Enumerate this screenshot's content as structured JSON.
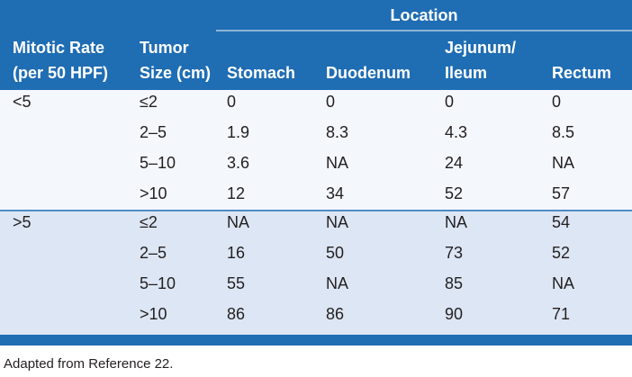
{
  "table": {
    "spanner": "Location",
    "columns": [
      [
        "Mitotic Rate",
        "(per 50 HPF)"
      ],
      [
        "Tumor",
        "Size (cm)"
      ],
      [
        "Stomach"
      ],
      [
        "Duodenum"
      ],
      [
        "Jejunum/",
        "Ileum"
      ],
      [
        "Rectum"
      ]
    ],
    "groups": [
      {
        "rate": "<5",
        "rows": [
          [
            "≤2",
            "0",
            "0",
            "0",
            "0"
          ],
          [
            "2–5",
            "1.9",
            "8.3",
            "4.3",
            "8.5"
          ],
          [
            "5–10",
            "3.6",
            "NA",
            "24",
            "NA"
          ],
          [
            ">10",
            "12",
            "34",
            "52",
            "57"
          ]
        ]
      },
      {
        "rate": ">5",
        "rows": [
          [
            "≤2",
            "NA",
            "NA",
            "NA",
            "54"
          ],
          [
            "2–5",
            "16",
            "50",
            "73",
            "52"
          ],
          [
            "5–10",
            "55",
            "NA",
            "85",
            "NA"
          ],
          [
            ">10",
            "86",
            "86",
            "90",
            "71"
          ]
        ]
      }
    ]
  },
  "footnote": "Adapted from Reference 22."
}
